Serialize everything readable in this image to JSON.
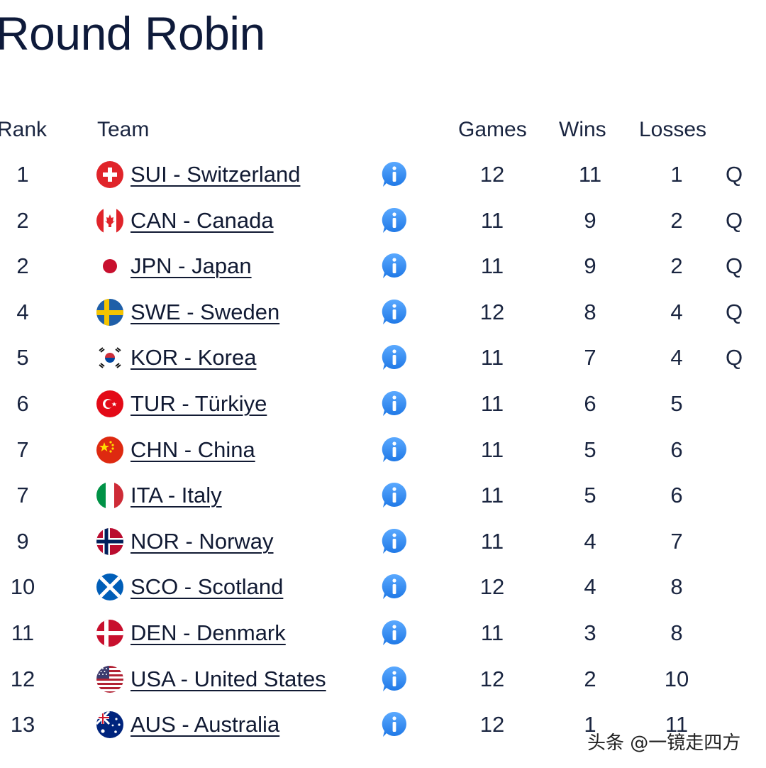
{
  "page": {
    "title": "Round Robin"
  },
  "table": {
    "headers": {
      "rank": "Rank",
      "team": "Team",
      "games": "Games",
      "wins": "Wins",
      "losses": "Losses"
    },
    "rows": [
      {
        "rank": "1",
        "team": "SUI - Switzerland",
        "flag": "switzerland-flag-icon",
        "games": "12",
        "wins": "11",
        "losses": "1",
        "q": "Q"
      },
      {
        "rank": "2",
        "team": "CAN - Canada",
        "flag": "canada-flag-icon",
        "games": "11",
        "wins": "9",
        "losses": "2",
        "q": "Q"
      },
      {
        "rank": "2",
        "team": "JPN - Japan",
        "flag": "japan-flag-icon",
        "games": "11",
        "wins": "9",
        "losses": "2",
        "q": "Q"
      },
      {
        "rank": "4",
        "team": "SWE - Sweden",
        "flag": "sweden-flag-icon",
        "games": "12",
        "wins": "8",
        "losses": "4",
        "q": "Q"
      },
      {
        "rank": "5",
        "team": "KOR - Korea",
        "flag": "korea-flag-icon",
        "games": "11",
        "wins": "7",
        "losses": "4",
        "q": "Q"
      },
      {
        "rank": "6",
        "team": "TUR - Türkiye",
        "flag": "turkiye-flag-icon",
        "games": "11",
        "wins": "6",
        "losses": "5",
        "q": ""
      },
      {
        "rank": "7",
        "team": "CHN - China",
        "flag": "china-flag-icon",
        "games": "11",
        "wins": "5",
        "losses": "6",
        "q": ""
      },
      {
        "rank": "7",
        "team": "ITA - Italy",
        "flag": "italy-flag-icon",
        "games": "11",
        "wins": "5",
        "losses": "6",
        "q": ""
      },
      {
        "rank": "9",
        "team": "NOR - Norway",
        "flag": "norway-flag-icon",
        "games": "11",
        "wins": "4",
        "losses": "7",
        "q": ""
      },
      {
        "rank": "10",
        "team": "SCO - Scotland",
        "flag": "scotland-flag-icon",
        "games": "12",
        "wins": "4",
        "losses": "8",
        "q": ""
      },
      {
        "rank": "11",
        "team": "DEN - Denmark",
        "flag": "denmark-flag-icon",
        "games": "11",
        "wins": "3",
        "losses": "8",
        "q": ""
      },
      {
        "rank": "12",
        "team": "USA - United States",
        "flag": "usa-flag-icon",
        "games": "12",
        "wins": "2",
        "losses": "10",
        "q": ""
      },
      {
        "rank": "13",
        "team": "AUS - Australia",
        "flag": "australia-flag-icon",
        "games": "12",
        "wins": "1",
        "losses": "11",
        "q": ""
      }
    ]
  },
  "watermark": "头条 @一镜走四方",
  "colors": {
    "info_blue": "#2f8cf0",
    "text": "#1a2540"
  }
}
